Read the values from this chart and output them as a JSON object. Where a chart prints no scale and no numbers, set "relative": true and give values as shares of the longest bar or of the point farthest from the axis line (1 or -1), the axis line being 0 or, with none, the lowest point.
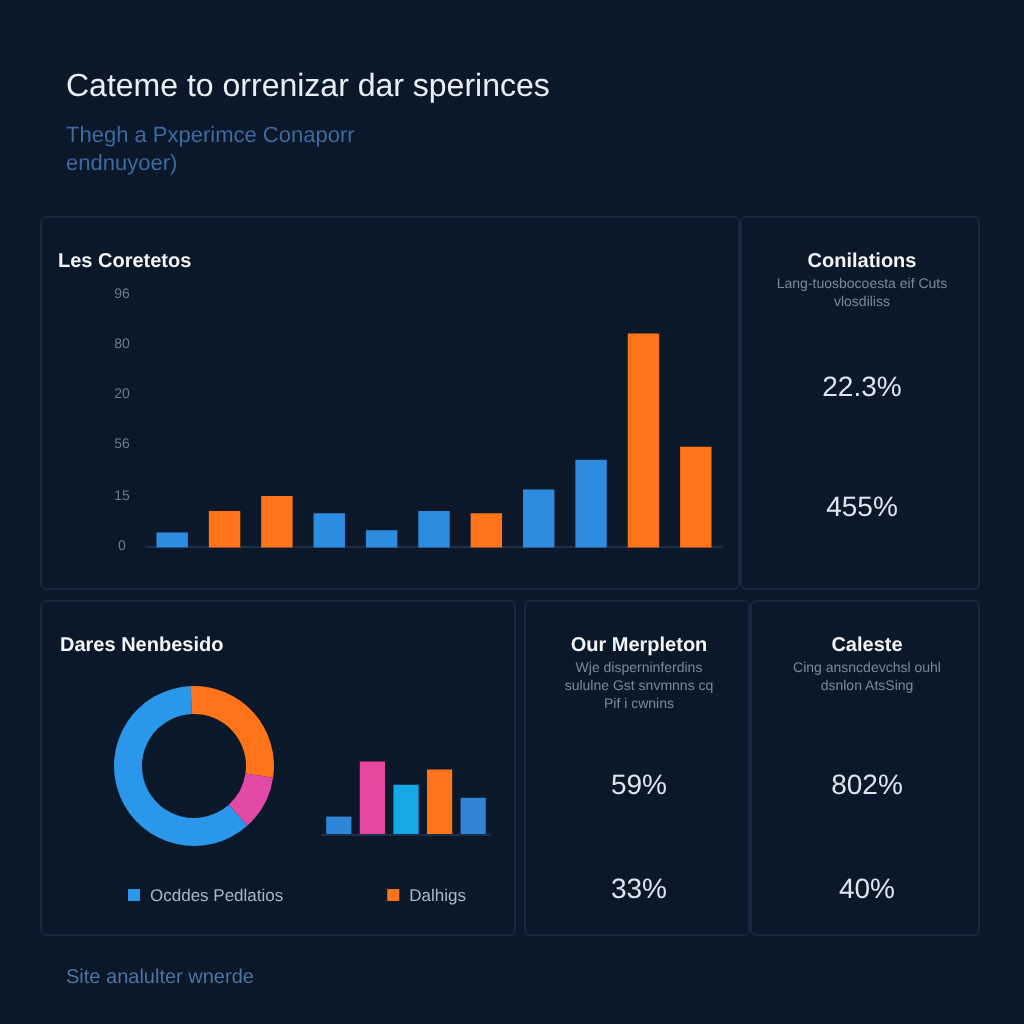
{
  "chart_data": [
    {
      "type": "other",
      "title": "Cateme to orrenizar dar sperinces",
      "subtitle": "Thegh a Pxperimce Conaporr endnuyoer)",
      "annotations": [
        "Site analulter wnerde"
      ]
    },
    {
      "type": "bar",
      "title": "Les Coretetos",
      "relative": true,
      "categories": [
        null,
        null,
        null,
        null,
        null,
        null,
        null,
        null,
        null,
        null,
        null
      ],
      "values": [
        0.07,
        0.17,
        0.24,
        0.16,
        0.08,
        0.17,
        0.16,
        0.27,
        0.41,
        1,
        0.47
      ],
      "colors": [
        "#2d8be0",
        "#ff7418",
        "#ff7418",
        "#2d8be0",
        "#2d8be0",
        "#2d8be0",
        "#ff7418",
        "#2d8be0",
        "#2d8be0",
        "#ff7418",
        "#ff7418"
      ],
      "annotations": [
        "96",
        "80",
        "20",
        "56",
        "15",
        "0"
      ]
    },
    {
      "type": "other",
      "title": "Conilations",
      "subtitle": "Lang-tuosbocoesta eif Cuts vlosdiliss",
      "annotations": [
        "22.3%",
        "455%"
      ]
    },
    {
      "type": "donut",
      "title": "Dares Nenbesido",
      "categories": [
        "Ocddes Pedlatios",
        "Dalhigs",
        null
      ],
      "values": [
        61,
        28,
        11
      ],
      "colors": [
        "#2a97ea",
        "#ff7418",
        "#e24aa6"
      ],
      "legend": "bottom"
    },
    {
      "type": "bar",
      "relative": true,
      "categories": [
        null,
        null,
        null,
        null,
        null
      ],
      "values": [
        0.24,
        1,
        0.68,
        0.89,
        0.5
      ],
      "colors": [
        "#2f86d8",
        "#e8479f",
        "#14a9e6",
        "#ff7418",
        "#3384d6"
      ]
    },
    {
      "type": "other",
      "title": "Our Merpleton",
      "subtitle": "Wje disperninferdins sululne Gst snvmnns cq Pif i cwnins",
      "annotations": [
        "59%",
        "33%"
      ]
    },
    {
      "type": "other",
      "title": "Caleste",
      "subtitle": "Cing ansncdevchsl ouhl dsnlon AtsSing",
      "annotations": [
        "802%",
        "40%"
      ]
    }
  ]
}
